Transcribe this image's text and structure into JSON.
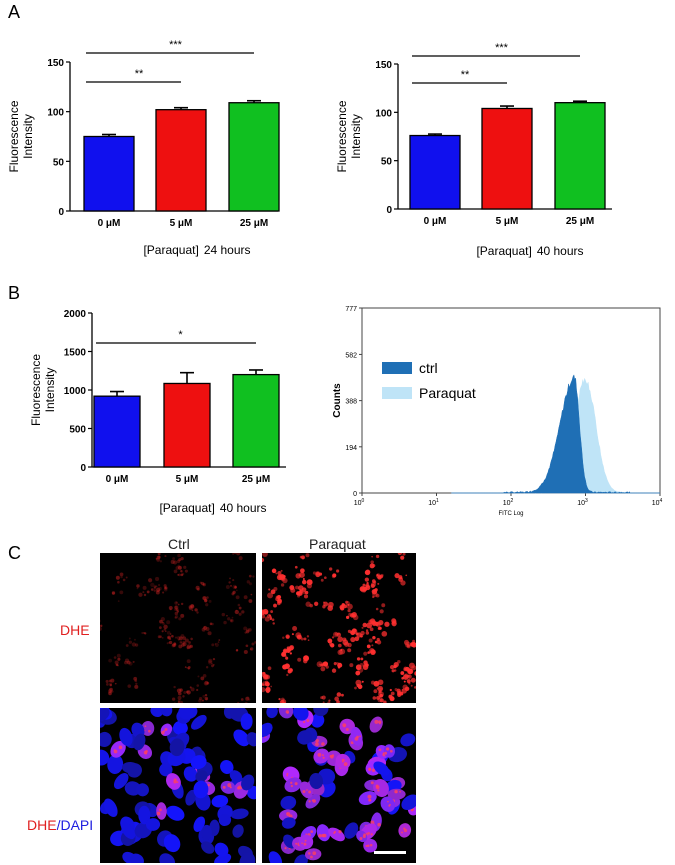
{
  "panel_labels": {
    "a": "A",
    "b": "B",
    "c": "C"
  },
  "chart_data": [
    {
      "id": "chart-a-24h",
      "type": "bar",
      "ylabel": "Fluorescence Intensity",
      "ylabel_lines": [
        "Fluorescence",
        "Intensity"
      ],
      "xlabel_bracket": "[Paraquat]",
      "xlabel_time": "24 hours",
      "ylim": [
        0,
        150
      ],
      "yticks": [
        0,
        50,
        100,
        150
      ],
      "categories": [
        "0 μM",
        "5 μM",
        "25 μM"
      ],
      "values": [
        75,
        102,
        109
      ],
      "errors": [
        2,
        2,
        2
      ],
      "colors": [
        "#1010ee",
        "#ee1010",
        "#10c020"
      ],
      "significance": [
        {
          "from": 0,
          "to": 1,
          "label": "**"
        },
        {
          "from": 0,
          "to": 2,
          "label": "***"
        }
      ]
    },
    {
      "id": "chart-a-40h",
      "type": "bar",
      "ylabel": "Fluorescence Intensity",
      "ylabel_lines": [
        "Fluorescence",
        "Intensity"
      ],
      "xlabel_bracket": "[Paraquat]",
      "xlabel_time": "40 hours",
      "ylim": [
        0,
        150
      ],
      "yticks": [
        0,
        50,
        100,
        150
      ],
      "categories": [
        "0 μM",
        "5 μM",
        "25 μM"
      ],
      "values": [
        76,
        104,
        110
      ],
      "errors": [
        1.5,
        2.5,
        1.5
      ],
      "colors": [
        "#1010ee",
        "#ee1010",
        "#10c020"
      ],
      "significance": [
        {
          "from": 0,
          "to": 1,
          "label": "**"
        },
        {
          "from": 0,
          "to": 2,
          "label": "***"
        }
      ]
    },
    {
      "id": "chart-b-40h",
      "type": "bar",
      "ylabel": "Fluorescence Intensity",
      "ylabel_lines": [
        "Fluorescence",
        "Intensity"
      ],
      "xlabel_bracket": "[Paraquat]",
      "xlabel_time": "40 hours",
      "ylim": [
        0,
        2000
      ],
      "yticks": [
        0,
        500,
        1000,
        1500,
        2000
      ],
      "categories": [
        "0 μM",
        "5 μM",
        "25 μM"
      ],
      "values": [
        920,
        1085,
        1200
      ],
      "errors": [
        60,
        140,
        60
      ],
      "colors": [
        "#1010ee",
        "#ee1010",
        "#10c020"
      ],
      "significance": [
        {
          "from": 0,
          "to": 2,
          "label": "*"
        }
      ]
    },
    {
      "id": "chart-b-histogram",
      "type": "area",
      "ylabel": "Counts",
      "xlabel": "FITC Log",
      "ylim": [
        0,
        777
      ],
      "yticks": [
        0,
        194,
        388,
        582,
        777
      ],
      "xlim_log10": [
        0,
        4
      ],
      "xtick_exponents": [
        "0",
        "1",
        "2",
        "3",
        "4"
      ],
      "xtick_base": "10",
      "series": [
        {
          "name": "ctrl",
          "color": "#1f6fb5",
          "peak_log10": 2.85,
          "peak_count": 500,
          "sd_left": 0.19,
          "sd_right": 0.07
        },
        {
          "name": "Paraquat",
          "color": "#bfe4f7",
          "peak_log10": 3.0,
          "peak_count": 490,
          "sd_left": 0.15,
          "sd_right": 0.14
        }
      ]
    }
  ],
  "micrographs": {
    "columns": [
      "Ctrl",
      "Paraquat"
    ],
    "rows": [
      {
        "label": "DHE",
        "label_color": "#e02020"
      },
      {
        "label_parts": [
          "DHE",
          "/",
          "DAPI"
        ],
        "label_colors": [
          "#e02020",
          "#2020e0",
          "#2020e0"
        ]
      }
    ]
  }
}
